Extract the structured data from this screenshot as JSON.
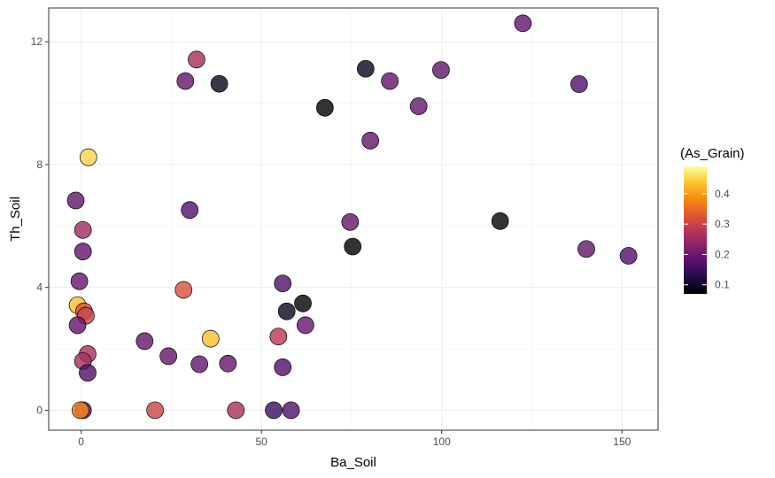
{
  "chart_data": {
    "type": "scatter",
    "xlabel": "Ba_Soil",
    "ylabel": "Th_Soil",
    "xlim": [
      -9,
      160
    ],
    "ylim": [
      -0.65,
      13.1
    ],
    "xticks": [
      0,
      50,
      100,
      150
    ],
    "yticks": [
      0,
      4,
      8,
      12
    ],
    "x_tick_labels": [
      "0",
      "50",
      "100",
      "150"
    ],
    "y_tick_labels": [
      "0",
      "4",
      "8",
      "12"
    ],
    "grid": true,
    "color_variable": "(As_Grain)",
    "color_range": [
      0.07,
      0.49
    ],
    "colorbar_ticks": [
      0.1,
      0.2,
      0.3,
      0.4
    ],
    "colorbar_tick_labels": [
      "0.1",
      "0.2",
      "0.3",
      "0.4"
    ],
    "legend_position": "right",
    "colormap": "inferno",
    "points": [
      {
        "x": 122.5,
        "y": 12.6,
        "c": 0.19
      },
      {
        "x": 32.0,
        "y": 11.42,
        "c": 0.26
      },
      {
        "x": 28.9,
        "y": 10.72,
        "c": 0.19
      },
      {
        "x": 38.3,
        "y": 10.63,
        "c": 0.09
      },
      {
        "x": 78.9,
        "y": 11.12,
        "c": 0.09
      },
      {
        "x": 85.6,
        "y": 10.72,
        "c": 0.19
      },
      {
        "x": 99.8,
        "y": 11.08,
        "c": 0.19
      },
      {
        "x": 138.1,
        "y": 10.62,
        "c": 0.17
      },
      {
        "x": 67.6,
        "y": 9.85,
        "c": 0.07
      },
      {
        "x": 93.6,
        "y": 9.9,
        "c": 0.19
      },
      {
        "x": 80.2,
        "y": 8.78,
        "c": 0.19
      },
      {
        "x": 2.0,
        "y": 8.24,
        "c": 0.45
      },
      {
        "x": -1.5,
        "y": 6.83,
        "c": 0.19
      },
      {
        "x": 30.1,
        "y": 6.52,
        "c": 0.17
      },
      {
        "x": 74.6,
        "y": 6.13,
        "c": 0.19
      },
      {
        "x": 116.2,
        "y": 6.16,
        "c": 0.07
      },
      {
        "x": 0.5,
        "y": 5.87,
        "c": 0.25
      },
      {
        "x": 75.3,
        "y": 5.33,
        "c": 0.07
      },
      {
        "x": 140.1,
        "y": 5.25,
        "c": 0.19
      },
      {
        "x": 151.8,
        "y": 5.03,
        "c": 0.17
      },
      {
        "x": 0.5,
        "y": 5.17,
        "c": 0.19
      },
      {
        "x": -0.5,
        "y": 4.2,
        "c": 0.19
      },
      {
        "x": 55.9,
        "y": 4.13,
        "c": 0.17
      },
      {
        "x": 28.4,
        "y": 3.92,
        "c": 0.32
      },
      {
        "x": 61.5,
        "y": 3.48,
        "c": 0.07
      },
      {
        "x": -1.0,
        "y": 3.42,
        "c": 0.43
      },
      {
        "x": 0.8,
        "y": 3.22,
        "c": 0.32
      },
      {
        "x": 57.0,
        "y": 3.22,
        "c": 0.09
      },
      {
        "x": 1.3,
        "y": 3.08,
        "c": 0.3
      },
      {
        "x": -1.0,
        "y": 2.77,
        "c": 0.19
      },
      {
        "x": 62.2,
        "y": 2.77,
        "c": 0.19
      },
      {
        "x": 35.9,
        "y": 2.33,
        "c": 0.43
      },
      {
        "x": 54.7,
        "y": 2.4,
        "c": 0.28
      },
      {
        "x": 17.6,
        "y": 2.25,
        "c": 0.19
      },
      {
        "x": 1.8,
        "y": 1.83,
        "c": 0.26
      },
      {
        "x": 24.2,
        "y": 1.76,
        "c": 0.19
      },
      {
        "x": 0.5,
        "y": 1.6,
        "c": 0.26
      },
      {
        "x": 32.8,
        "y": 1.5,
        "c": 0.19
      },
      {
        "x": 40.7,
        "y": 1.52,
        "c": 0.19
      },
      {
        "x": 55.9,
        "y": 1.4,
        "c": 0.17
      },
      {
        "x": 1.8,
        "y": 1.22,
        "c": 0.17
      },
      {
        "x": 0.5,
        "y": 0.0,
        "c": 0.17
      },
      {
        "x": -0.2,
        "y": 0.0,
        "c": 0.38
      },
      {
        "x": 20.5,
        "y": 0.0,
        "c": 0.3
      },
      {
        "x": 42.9,
        "y": 0.0,
        "c": 0.26
      },
      {
        "x": 53.4,
        "y": 0.0,
        "c": 0.15
      },
      {
        "x": 58.2,
        "y": 0.0,
        "c": 0.17
      }
    ]
  }
}
